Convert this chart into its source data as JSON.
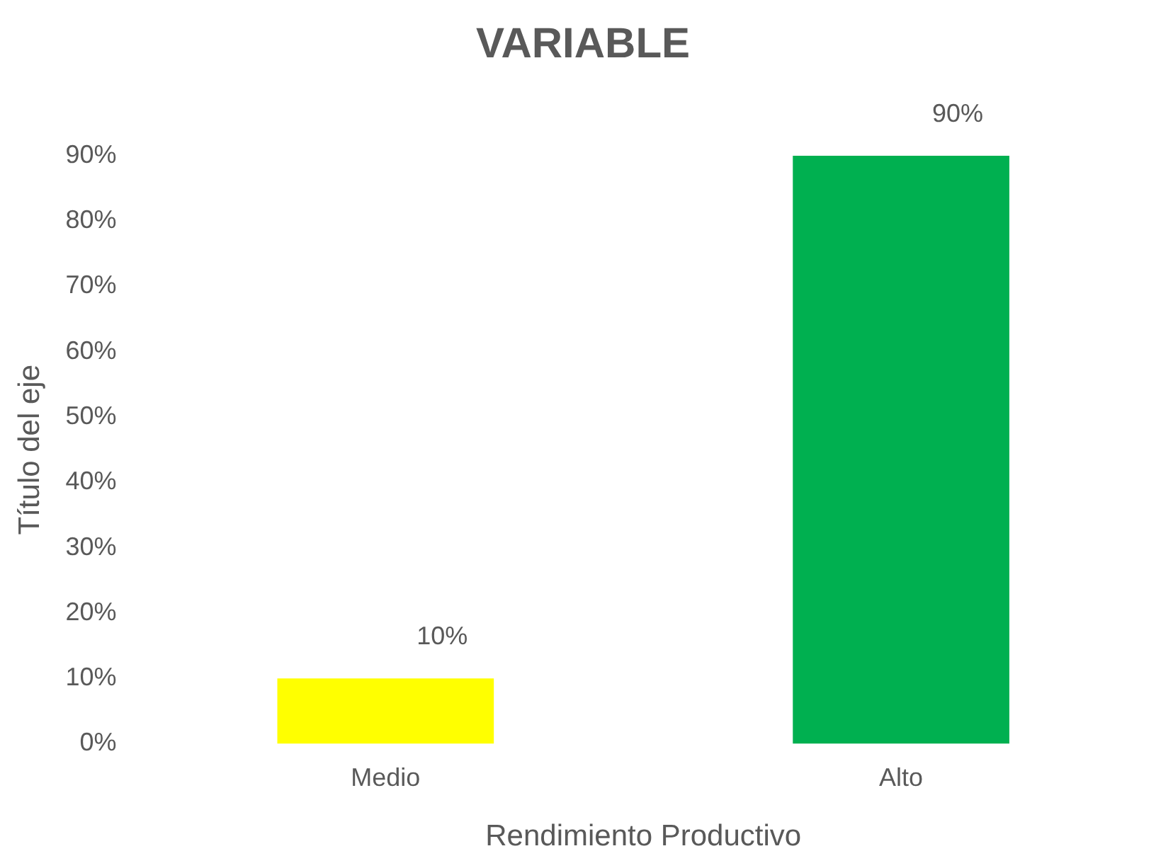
{
  "chart_data": {
    "type": "bar",
    "title": "VARIABLE",
    "xlabel": "Rendimiento Productivo",
    "ylabel": "Título del eje",
    "categories": [
      "Medio",
      "Alto"
    ],
    "values": [
      10,
      90
    ],
    "colors": [
      "#ffff00",
      "#00b050"
    ],
    "value_labels": [
      "10%",
      "90%"
    ],
    "ylim": [
      0,
      90
    ],
    "yticks": [
      {
        "value": 0,
        "label": "0%"
      },
      {
        "value": 10,
        "label": "10%"
      },
      {
        "value": 20,
        "label": "20%"
      },
      {
        "value": 30,
        "label": "30%"
      },
      {
        "value": 40,
        "label": "40%"
      },
      {
        "value": 50,
        "label": "50%"
      },
      {
        "value": 60,
        "label": "60%"
      },
      {
        "value": 70,
        "label": "70%"
      },
      {
        "value": 80,
        "label": "80%"
      },
      {
        "value": 90,
        "label": "90%"
      }
    ],
    "grid": false,
    "legend": false
  }
}
